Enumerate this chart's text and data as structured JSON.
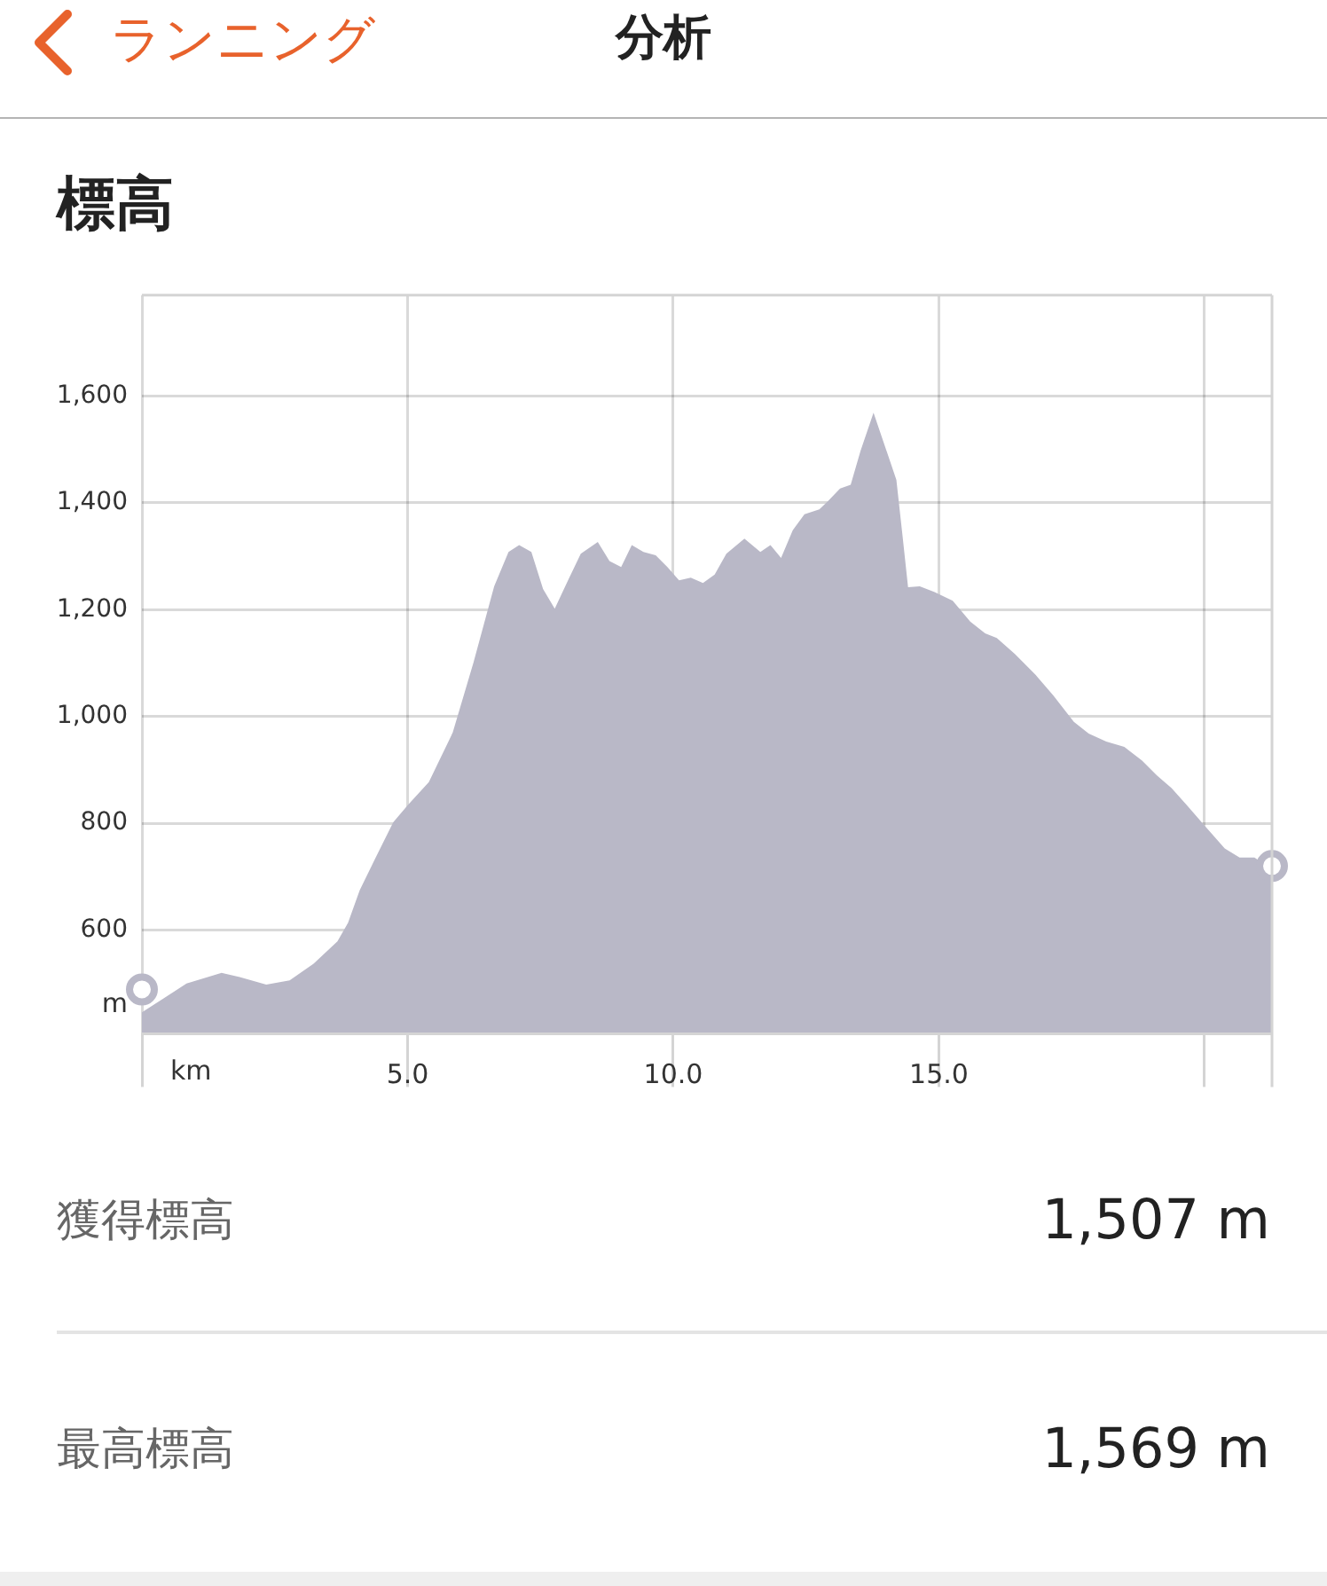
{
  "chart_data": {
    "type": "area",
    "title": "標高",
    "xlabel": "km",
    "ylabel": "m",
    "annotations": [
      "ランニング",
      "分析",
      "獲得標高",
      "1,507 m",
      "最高標高",
      "1,569 m"
    ],
    "x": [
      0,
      0.39,
      0.84,
      1.5,
      1.84,
      2.34,
      2.78,
      3.23,
      3.68,
      3.88,
      4.1,
      4.4,
      4.73,
      5.01,
      5.4,
      5.85,
      6.24,
      6.63,
      6.9,
      7.1,
      7.33,
      7.55,
      7.77,
      8.02,
      8.26,
      8.58,
      8.8,
      9.02,
      9.22,
      9.44,
      9.67,
      9.89,
      10.11,
      10.33,
      10.56,
      10.78,
      11.0,
      11.34,
      11.64,
      11.83,
      12.03,
      12.25,
      12.47,
      12.75,
      12.92,
      13.14,
      13.34,
      13.53,
      13.77,
      14.01,
      14.2,
      14.31,
      14.42,
      14.64,
      14.92,
      15.26,
      15.59,
      15.87,
      16.09,
      16.43,
      16.82,
      17.15,
      17.54,
      17.82,
      18.15,
      18.49,
      18.82,
      19.1,
      19.38,
      19.66,
      19.99,
      20.38,
      20.66,
      20.94,
      21.27
    ],
    "series": [
      {
        "color": "#b9b8c7",
        "values": [
          446,
          471,
          500,
          520,
          512,
          498,
          506,
          537,
          579,
          614,
          675,
          736,
          802,
          835,
          877,
          970,
          1101,
          1244,
          1308,
          1321,
          1308,
          1239,
          1202,
          1255,
          1305,
          1327,
          1291,
          1280,
          1321,
          1308,
          1302,
          1280,
          1255,
          1260,
          1250,
          1266,
          1305,
          1333,
          1308,
          1321,
          1297,
          1349,
          1379,
          1388,
          1404,
          1427,
          1434,
          1499,
          1569,
          1499,
          1443,
          1344,
          1242,
          1244,
          1233,
          1217,
          1178,
          1156,
          1147,
          1117,
          1078,
          1040,
          990,
          968,
          953,
          943,
          918,
          890,
          866,
          835,
          797,
          753,
          736,
          736,
          714
        ]
      },
      {
        "type": "scatter",
        "color": "#b9b8c7",
        "marker": "circle",
        "x": [
          0,
          21.27
        ],
        "values": [
          489,
          720
        ]
      }
    ],
    "xlim": [
      0,
      21.27
    ],
    "xticks": [
      {
        "value": 0,
        "label": null
      },
      {
        "value": 5,
        "label": "5.0"
      },
      {
        "value": 10,
        "label": "10.0"
      },
      {
        "value": 15,
        "label": "15.0"
      },
      {
        "value": 20,
        "label": null
      }
    ],
    "ylim": [
      406,
      1789
    ],
    "yticks": [
      600,
      800,
      {
        "value": 1000,
        "label": "1,000"
      },
      {
        "value": 1200,
        "label": "1,200"
      },
      {
        "value": 1400,
        "label": "1,400"
      },
      {
        "value": 1600,
        "label": "1,600"
      }
    ],
    "grid": true
  }
}
